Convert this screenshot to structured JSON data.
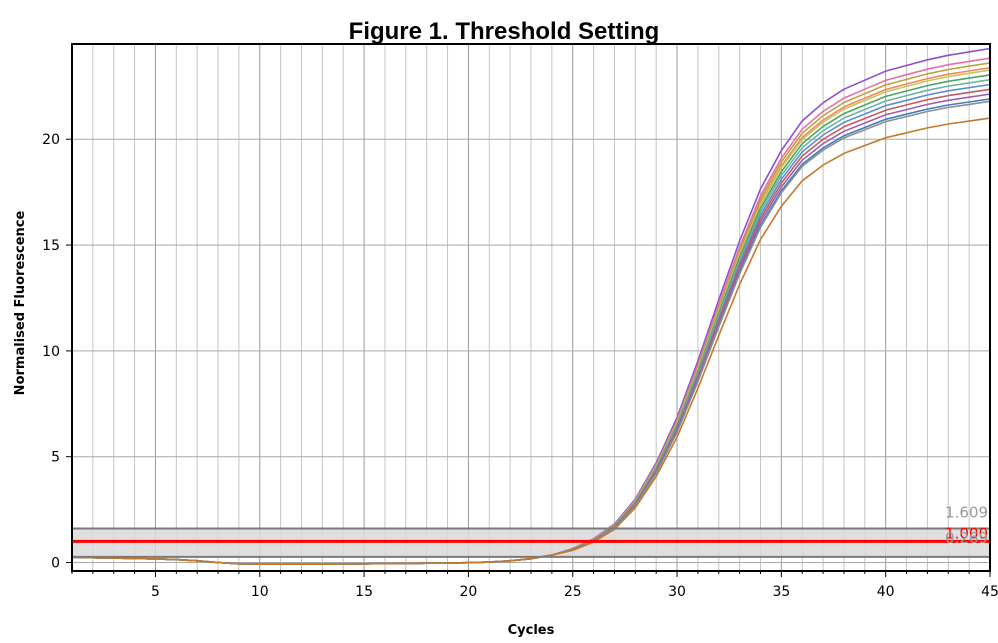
{
  "chart_data": {
    "type": "line",
    "title": "Figure 1. Threshold Setting",
    "xlabel": "Cycles",
    "ylabel": "Normalised Fluorescence",
    "xlim": [
      1,
      45
    ],
    "ylim": [
      -0.4,
      24.5
    ],
    "x_ticks": [
      5,
      10,
      15,
      20,
      25,
      30,
      35,
      40,
      45
    ],
    "y_ticks": [
      0,
      5,
      10,
      15,
      20
    ],
    "grid": {
      "vertical_major": true,
      "vertical_minor": true,
      "horizontal": true
    },
    "legend": "none",
    "threshold": {
      "value": 1.0,
      "label": "1.000",
      "upper": 1.609,
      "upper_label": "1.609",
      "lower": 0.269,
      "lower_label": "0.269",
      "line_color": "#ff0000",
      "band_color": "#d9d9d9"
    },
    "x": [
      1,
      2,
      3,
      4,
      5,
      6,
      7,
      8,
      9,
      10,
      11,
      12,
      13,
      14,
      15,
      16,
      17,
      18,
      19,
      20,
      21,
      22,
      23,
      24,
      25,
      26,
      27,
      28,
      29,
      30,
      31,
      32,
      33,
      34,
      35,
      36,
      37,
      38,
      39,
      40,
      41,
      42,
      43,
      44,
      45
    ],
    "baseline": [
      0.25,
      0.23,
      0.21,
      0.19,
      0.17,
      0.14,
      0.08,
      0.0,
      -0.06,
      -0.08,
      -0.08,
      -0.08,
      -0.08,
      -0.07,
      -0.06,
      -0.05,
      -0.04,
      -0.03,
      -0.02,
      -0.01,
      0.02,
      0.08,
      0.18,
      0.35,
      0.62,
      1.05,
      1.7,
      2.8,
      4.4,
      6.4,
      8.9,
      11.6,
      14.2,
      16.5,
      18.2,
      19.5,
      20.3,
      20.9,
      21.3,
      21.7,
      21.95,
      22.2,
      22.4,
      22.55,
      22.7
    ],
    "series": [
      {
        "color": "#8b4fd6",
        "scale": 1.07
      },
      {
        "color": "#e96fa8",
        "scale": 1.05
      },
      {
        "color": "#b7a33a",
        "scale": 1.04
      },
      {
        "color": "#ef8a5b",
        "scale": 1.03
      },
      {
        "color": "#c9c35d",
        "scale": 1.025
      },
      {
        "color": "#4aa566",
        "scale": 1.015
      },
      {
        "color": "#6fb3a5",
        "scale": 1.005
      },
      {
        "color": "#5b8fd1",
        "scale": 0.995
      },
      {
        "color": "#c85a5a",
        "scale": 0.985
      },
      {
        "color": "#9e5fb5",
        "scale": 0.975
      },
      {
        "color": "#3f7fbf",
        "scale": 0.965
      },
      {
        "color": "#8e8e8e",
        "scale": 0.96
      },
      {
        "color": "#c57a2a",
        "scale": 0.925
      }
    ]
  }
}
